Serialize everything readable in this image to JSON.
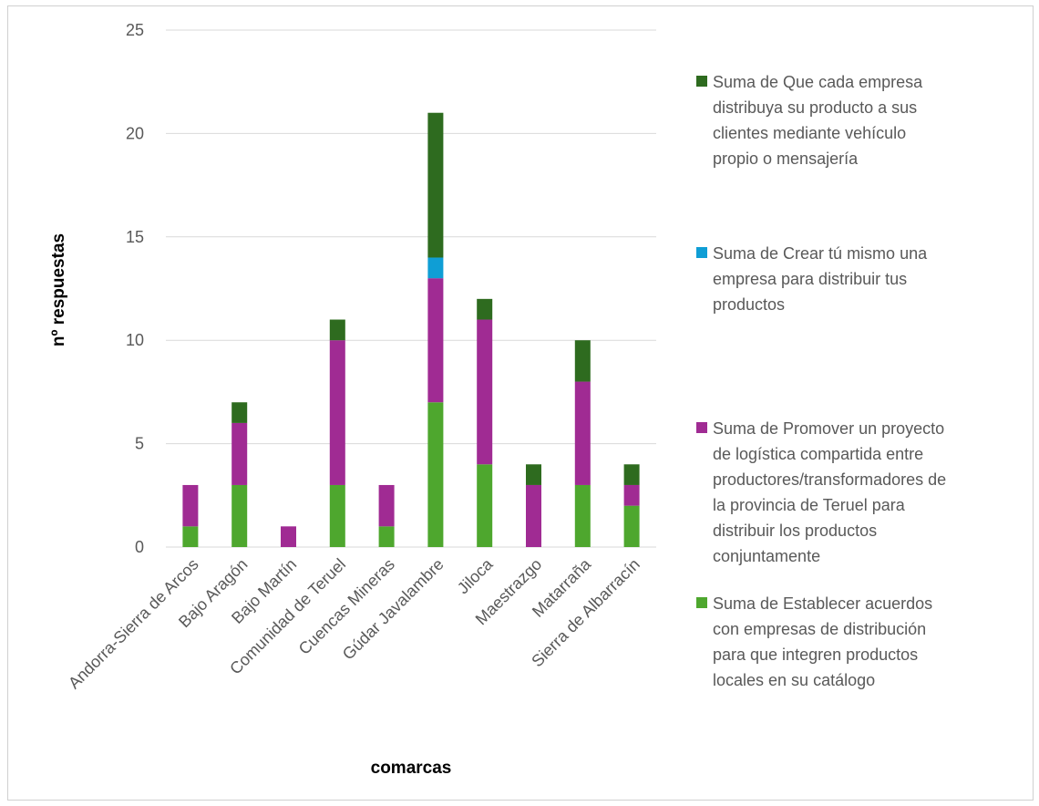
{
  "chart_data": {
    "type": "bar",
    "stacked": true,
    "categories": [
      "Andorra-Sierra de Arcos",
      "Bajo Aragón",
      "Bajo Martín",
      "Comunidad de Teruel",
      "Cuencas Mineras",
      "Gúdar Javalambre",
      "Jiloca",
      "Maestrazgo",
      "Matarraña",
      "Sierra de Albarracín"
    ],
    "series": [
      {
        "name": "Suma de Establecer acuerdos con empresas de distribución para que integren productos locales en su catálogo",
        "color": "#4ea72e",
        "values": [
          1,
          3,
          0,
          3,
          1,
          7,
          4,
          0,
          3,
          2
        ]
      },
      {
        "name": "Suma de Promover un proyecto de logística compartida entre productores/transformadores de la provincia de Teruel para distribuir los productos conjuntamente",
        "color": "#a02b93",
        "values": [
          2,
          3,
          1,
          7,
          2,
          6,
          7,
          3,
          5,
          1
        ]
      },
      {
        "name": "Suma de  Crear tú mismo una empresa para distribuir tus productos",
        "color": "#0f9ed5",
        "values": [
          0,
          0,
          0,
          0,
          0,
          1,
          0,
          0,
          0,
          0
        ]
      },
      {
        "name": "Suma de Que cada empresa distribuya su producto a sus clientes mediante vehículo propio o mensajería",
        "color": "#2e6b1f",
        "values": [
          0,
          1,
          0,
          1,
          0,
          7,
          1,
          1,
          2,
          1
        ]
      }
    ],
    "xlabel": "comarcas",
    "ylabel": "nº respuestas",
    "ylim": [
      0,
      25
    ],
    "yticks": [
      "0",
      "5",
      "10",
      "15",
      "20",
      "25"
    ],
    "grid": true,
    "legend_position": "right"
  },
  "legend": [
    {
      "text": "Suma de Que cada empresa\ndistribuya su producto a sus\nclientes mediante vehículo\npropio o mensajería",
      "color": "#2e6b1f"
    },
    {
      "text": "Suma de  Crear tú mismo una\nempresa para distribuir tus\nproductos",
      "color": "#0f9ed5"
    },
    {
      "text": "Suma de Promover un proyecto\nde logística compartida entre\nproductores/transformadores de\nla provincia de Teruel para\ndistribuir los productos\nconjuntamente",
      "color": "#a02b93"
    },
    {
      "text": "Suma de Establecer acuerdos\ncon empresas de distribución\npara que integren productos\nlocales en su catálogo",
      "color": "#4ea72e"
    }
  ]
}
